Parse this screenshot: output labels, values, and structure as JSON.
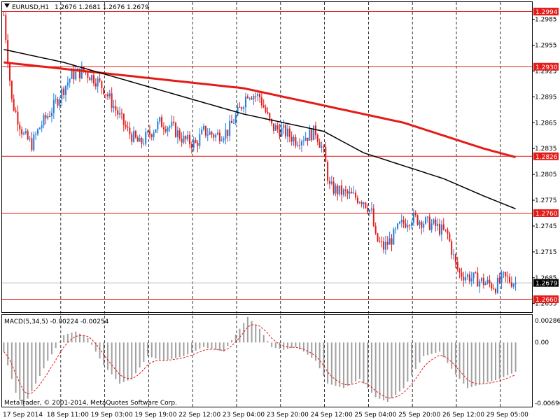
{
  "header": {
    "symbol": "EURUSD,H1",
    "ohlc": "1.2676 1.2681 1.2676 1.2679",
    "triangle_icon": "dropdown-triangle-icon"
  },
  "macd": {
    "title": "MACD(5,34,5) -0.00224 -0.00254",
    "y_labels": [
      "0.00286",
      "0.00",
      "-0.00696"
    ]
  },
  "footer": {
    "copyright": "MetaTrader, © 2001-2014, MetaQuotes Software Corp."
  },
  "colors": {
    "bull": "#1e7ee0",
    "bear": "#e41b17",
    "ma_slow": "#e41b17",
    "ma_fast": "#000000",
    "level_line": "#e41b17",
    "bid_line": "#c0c0c0",
    "histogram": "#a0a0a0",
    "signal": "#e41b17"
  },
  "chart_data": {
    "type": "candlestick",
    "symbol": "EURUSD",
    "timeframe": "H1",
    "ylim": [
      1.2645,
      1.3005
    ],
    "price_axis_ticks": [
      "1.2985",
      "1.2955",
      "1.2925",
      "1.2895",
      "1.2865",
      "1.2835",
      "1.2805",
      "1.2775",
      "1.2745",
      "1.2715",
      "1.2685",
      "1.2655"
    ],
    "time_axis_labels": [
      "17 Sep 2014",
      "18 Sep 11:00",
      "19 Sep 03:00",
      "19 Sep 19:00",
      "22 Sep 12:00",
      "23 Sep 04:00",
      "23 Sep 20:00",
      "24 Sep 12:00",
      "25 Sep 04:00",
      "25 Sep 20:00",
      "26 Sep 12:00",
      "29 Sep 05:00"
    ],
    "horizontal_levels": [
      {
        "price": 1.2994,
        "label": "1.2994"
      },
      {
        "price": 1.293,
        "label": "1.2930"
      },
      {
        "price": 1.2826,
        "label": "1.2826"
      },
      {
        "price": 1.276,
        "label": "1.2760"
      },
      {
        "price": 1.266,
        "label": "1.2660"
      }
    ],
    "current_price": {
      "price": 1.2679,
      "label": "1.2679"
    },
    "close_path": [
      [
        0,
        1.299
      ],
      [
        4,
        1.289
      ],
      [
        10,
        1.285
      ],
      [
        14,
        1.284
      ],
      [
        18,
        1.286
      ],
      [
        24,
        1.288
      ],
      [
        30,
        1.2905
      ],
      [
        34,
        1.292
      ],
      [
        40,
        1.2925
      ],
      [
        46,
        1.2915
      ],
      [
        50,
        1.2905
      ],
      [
        56,
        1.288
      ],
      [
        62,
        1.2855
      ],
      [
        68,
        1.284
      ],
      [
        72,
        1.285
      ],
      [
        78,
        1.2865
      ],
      [
        84,
        1.286
      ],
      [
        90,
        1.2845
      ],
      [
        96,
        1.284
      ],
      [
        100,
        1.2855
      ],
      [
        106,
        1.285
      ],
      [
        112,
        1.2855
      ],
      [
        118,
        1.288
      ],
      [
        122,
        1.29
      ],
      [
        128,
        1.2895
      ],
      [
        134,
        1.286
      ],
      [
        140,
        1.2855
      ],
      [
        146,
        1.2845
      ],
      [
        152,
        1.285
      ],
      [
        156,
        1.2855
      ],
      [
        160,
        1.283
      ],
      [
        163,
        1.279
      ],
      [
        168,
        1.2785
      ],
      [
        174,
        1.278
      ],
      [
        180,
        1.2775
      ],
      [
        184,
        1.276
      ],
      [
        186,
        1.273
      ],
      [
        190,
        1.272
      ],
      [
        194,
        1.273
      ],
      [
        198,
        1.2745
      ],
      [
        204,
        1.2755
      ],
      [
        210,
        1.275
      ],
      [
        216,
        1.2745
      ],
      [
        222,
        1.2735
      ],
      [
        226,
        1.27
      ],
      [
        228,
        1.269
      ],
      [
        234,
        1.2685
      ],
      [
        240,
        1.268
      ],
      [
        246,
        1.2675
      ],
      [
        250,
        1.2685
      ],
      [
        256,
        1.2679
      ]
    ],
    "ma_slow": [
      [
        0,
        1.2935
      ],
      [
        40,
        1.2925
      ],
      [
        80,
        1.2915
      ],
      [
        120,
        1.2905
      ],
      [
        150,
        1.289
      ],
      [
        180,
        1.2875
      ],
      [
        200,
        1.2865
      ],
      [
        220,
        1.285
      ],
      [
        240,
        1.2835
      ],
      [
        256,
        1.2825
      ]
    ],
    "ma_fast": [
      [
        0,
        1.295
      ],
      [
        30,
        1.2935
      ],
      [
        60,
        1.2915
      ],
      [
        90,
        1.2895
      ],
      [
        120,
        1.2875
      ],
      [
        140,
        1.2865
      ],
      [
        160,
        1.2855
      ],
      [
        180,
        1.283
      ],
      [
        200,
        1.2815
      ],
      [
        220,
        1.28
      ],
      [
        240,
        1.278
      ],
      [
        256,
        1.2765
      ]
    ],
    "macd_ylim": [
      -0.00696,
      0.00286
    ],
    "macd_hist_path": [
      [
        0,
        -0.001
      ],
      [
        6,
        -0.0055
      ],
      [
        10,
        -0.007
      ],
      [
        16,
        -0.0045
      ],
      [
        22,
        -0.002
      ],
      [
        30,
        0.0008
      ],
      [
        36,
        0.0012
      ],
      [
        42,
        0.0005
      ],
      [
        50,
        -0.0025
      ],
      [
        58,
        -0.0045
      ],
      [
        64,
        -0.004
      ],
      [
        72,
        -0.0015
      ],
      [
        80,
        -0.002
      ],
      [
        90,
        -0.0015
      ],
      [
        100,
        -0.0005
      ],
      [
        110,
        -0.001
      ],
      [
        118,
        0.0015
      ],
      [
        122,
        0.0028
      ],
      [
        128,
        0.0015
      ],
      [
        134,
        -0.0005
      ],
      [
        140,
        -0.0008
      ],
      [
        146,
        -0.0005
      ],
      [
        150,
        -0.001
      ],
      [
        156,
        -0.002
      ],
      [
        162,
        -0.0045
      ],
      [
        170,
        -0.005
      ],
      [
        178,
        -0.004
      ],
      [
        186,
        -0.006
      ],
      [
        192,
        -0.0065
      ],
      [
        200,
        -0.005
      ],
      [
        210,
        -0.0015
      ],
      [
        218,
        -0.001
      ],
      [
        226,
        -0.0035
      ],
      [
        232,
        -0.005
      ],
      [
        240,
        -0.0045
      ],
      [
        248,
        -0.004
      ],
      [
        256,
        -0.0032
      ]
    ]
  }
}
